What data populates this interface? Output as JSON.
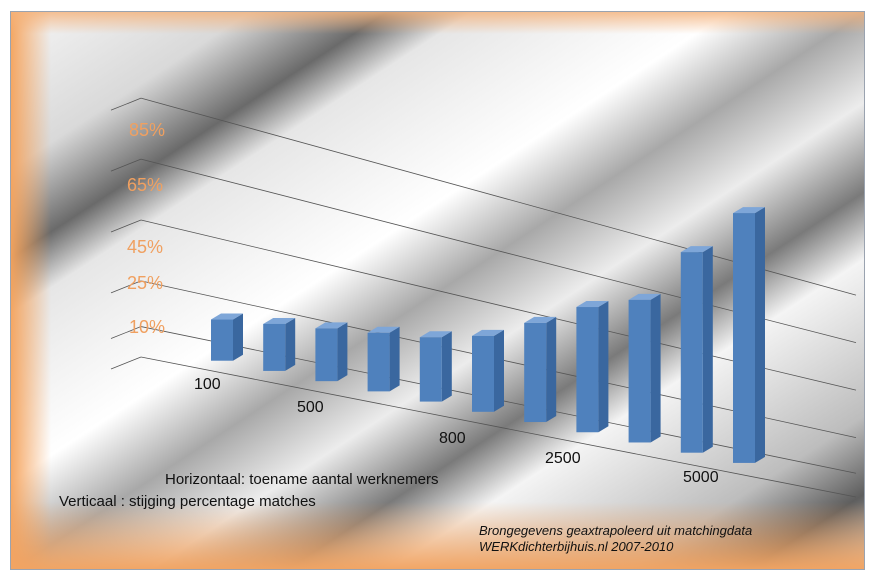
{
  "chart_data": {
    "type": "bar",
    "categories": [
      "100",
      "",
      "500",
      "",
      "800",
      "",
      "2500",
      "",
      "5000",
      "",
      ""
    ],
    "x_tick_labels": [
      "100",
      "500",
      "800",
      "2500",
      "5000"
    ],
    "y_tick_labels": [
      "10%",
      "25%",
      "45%",
      "65%",
      "85%"
    ],
    "values": [
      8,
      10,
      12,
      14,
      16,
      20,
      28,
      37,
      43,
      63,
      80
    ],
    "ylim": [
      0,
      100
    ],
    "grid": true,
    "colors": {
      "bar_front": "#4f81bd",
      "bar_side": "#3a679f",
      "bar_top": "#7ea6d8",
      "tick_label": "#f0a060"
    }
  },
  "captions": {
    "horizontal": "Horizontaal: toename aantal werknemers",
    "vertical": "Verticaal : stijging percentage matches"
  },
  "source": {
    "line1": "Brongegevens geaxtrapoleerd uit matchingdata",
    "line2": "WERKdichterbijhuis.nl 2007-2010"
  }
}
